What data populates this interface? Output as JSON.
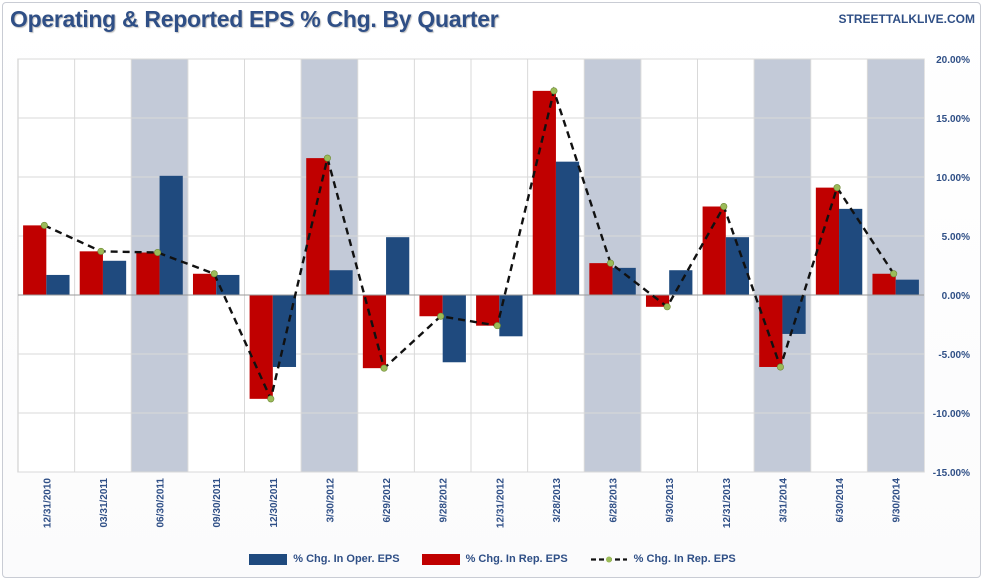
{
  "header": {
    "title": "Operating & Reported EPS % Chg. By Quarter",
    "source": "STREETTALKLIVE.COM"
  },
  "colors": {
    "oper": "#1f4a7e",
    "rep": "#c00000",
    "rep_line": "#111111",
    "marker": "#9bbb59",
    "shade": "#c3cad8",
    "grid": "#d9d9d9",
    "text": "#2f4f86"
  },
  "chart_data": {
    "type": "bar",
    "title": "Operating & Reported EPS % Chg. By Quarter",
    "categories": [
      "12/31/2010",
      "03/31/2011",
      "06/30/2011",
      "09/30/2011",
      "12/30/2011",
      "3/30/2012",
      "6/29/2012",
      "9/28/2012",
      "12/31/2012",
      "3/28/2013",
      "6/28/2013",
      "9/30/2013",
      "12/31/2013",
      "3/31/2014",
      "6/30/2014",
      "9/30/2014"
    ],
    "series": [
      {
        "name": "% Chg. In Oper. EPS",
        "kind": "bar",
        "color": "#1f4a7e",
        "values": [
          1.7,
          2.9,
          10.1,
          1.7,
          -6.1,
          2.1,
          4.9,
          -5.7,
          -3.5,
          11.3,
          2.3,
          2.1,
          4.9,
          -3.3,
          7.3,
          1.3
        ]
      },
      {
        "name": "% Chg. In Rep. EPS",
        "kind": "bar",
        "color": "#c00000",
        "values": [
          5.9,
          3.7,
          3.6,
          1.8,
          -8.8,
          11.6,
          -6.2,
          -1.8,
          -2.6,
          17.3,
          2.7,
          -1.0,
          7.5,
          -6.1,
          9.1,
          1.8
        ]
      },
      {
        "name": "% Chg. In Rep. EPS",
        "kind": "line",
        "color": "#111111",
        "values": [
          5.9,
          3.7,
          3.6,
          1.8,
          -8.8,
          11.6,
          -6.2,
          -1.8,
          -2.6,
          17.3,
          2.7,
          -1.0,
          7.5,
          -6.1,
          9.1,
          1.8
        ]
      }
    ],
    "shaded_categories": [
      "06/30/2011",
      "3/30/2012",
      "6/28/2013",
      "3/31/2014",
      "9/30/2014"
    ],
    "ylim": [
      -15,
      20
    ],
    "y_ticks": [
      20,
      15,
      10,
      5,
      0,
      -5,
      -10,
      -15
    ],
    "y_tick_labels": [
      "20.00%",
      "15.00%",
      "10.00%",
      "5.00%",
      "0.00%",
      "-5.00%",
      "-10.00%",
      "-15.00%"
    ],
    "y_axis_side": "right",
    "grid": true,
    "legend_position": "bottom"
  }
}
